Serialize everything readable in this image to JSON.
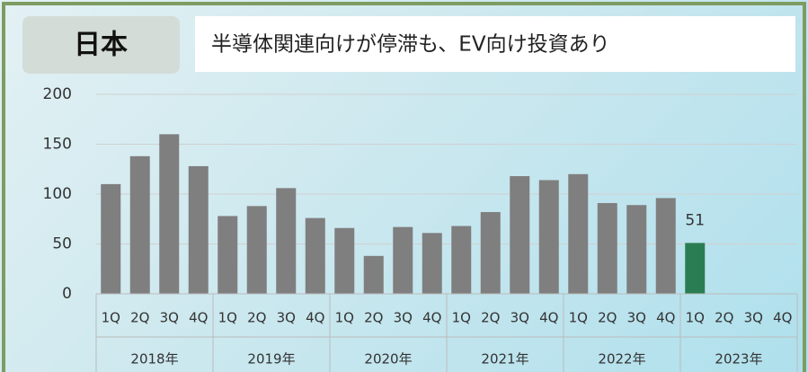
{
  "header": {
    "country": "日本",
    "subtitle": "半導体関連向けが停滞も、EV向け投資あり"
  },
  "chart_data": {
    "type": "bar",
    "categories": [
      "1Q",
      "2Q",
      "3Q",
      "4Q",
      "1Q",
      "2Q",
      "3Q",
      "4Q",
      "1Q",
      "2Q",
      "3Q",
      "4Q",
      "1Q",
      "2Q",
      "3Q",
      "4Q",
      "1Q",
      "2Q",
      "3Q",
      "4Q",
      "1Q",
      "2Q",
      "3Q",
      "4Q"
    ],
    "groups": [
      "2018年",
      "2019年",
      "2020年",
      "2021年",
      "2022年",
      "2023年"
    ],
    "values": [
      110,
      138,
      160,
      128,
      78,
      88,
      106,
      76,
      66,
      38,
      67,
      61,
      68,
      82,
      118,
      114,
      120,
      91,
      89,
      96,
      51,
      null,
      null,
      null
    ],
    "color": "#7f7f7f",
    "highlight": {
      "index": 20,
      "color": "#2a7d52",
      "label": true
    },
    "ylim": [
      0,
      200
    ],
    "yticks": [
      0,
      50,
      100,
      150,
      200
    ],
    "grid": true
  }
}
